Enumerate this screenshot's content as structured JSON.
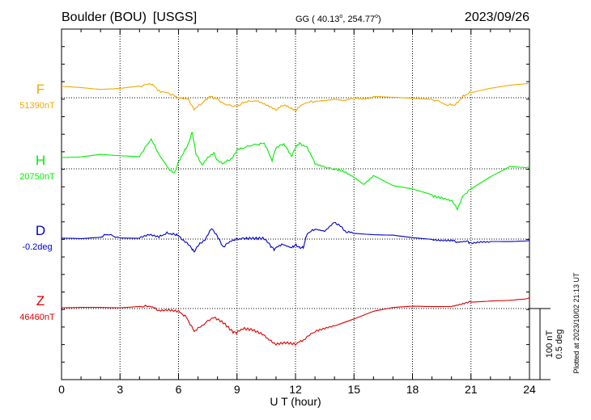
{
  "header": {
    "station": "Boulder (BOU)",
    "agency": "[USGS]",
    "coords_prefix": "GG ( 40.13",
    "coords_mid": ", 254.77",
    "coords_suffix": ")",
    "degree_mark": "o",
    "date": "2023/09/26"
  },
  "footer": {
    "plotted": "Plotted at 2023/10/02 21:13 UT"
  },
  "scale_bar": {
    "label_1": "100 nT",
    "label_2": "0.5 deg"
  },
  "colors": {
    "F": "#f0aa00",
    "H": "#00ee00",
    "D": "#0000cc",
    "Z": "#dd0000",
    "axis": "#000000"
  },
  "chart_data": {
    "type": "line",
    "title": "Boulder (BOU)  [USGS]",
    "xlabel": "U T (hour)",
    "xlim": [
      0,
      24
    ],
    "xticks": [
      "0",
      "3",
      "6",
      "9",
      "12",
      "15",
      "18",
      "21",
      "24"
    ],
    "grid": true,
    "series": [
      {
        "name": "F",
        "baseline_label": "51390nT",
        "baseline": 51390,
        "unit": "nT",
        "x": [
          0,
          1,
          2,
          3,
          4,
          4.6,
          5,
          5.6,
          6,
          6.5,
          6.8,
          7.2,
          7.6,
          8,
          8.4,
          9,
          9.4,
          10,
          10.5,
          11,
          11.4,
          11.8,
          12,
          12.4,
          13,
          13.5,
          14,
          14.5,
          15,
          15.5,
          16,
          17,
          18,
          19,
          19.8,
          20.2,
          20.6,
          21,
          22,
          23,
          24
        ],
        "values": [
          51407,
          51405,
          51402,
          51403,
          51406,
          51410,
          51400,
          51395,
          51390,
          51388,
          51374,
          51382,
          51392,
          51388,
          51380,
          51378,
          51384,
          51386,
          51380,
          51373,
          51380,
          51375,
          51372,
          51382,
          51385,
          51386,
          51388,
          51386,
          51390,
          51388,
          51391,
          51390,
          51389,
          51388,
          51380,
          51380,
          51392,
          51398,
          51404,
          51408,
          51410
        ]
      },
      {
        "name": "H",
        "baseline_label": "20750nT",
        "baseline": 20750,
        "unit": "nT",
        "x": [
          0,
          1,
          2,
          3,
          4,
          4.6,
          5,
          5.5,
          5.8,
          6,
          6.3,
          6.5,
          6.7,
          6.9,
          7.2,
          7.5,
          7.8,
          8,
          8.3,
          8.7,
          9,
          9.3,
          10,
          10.4,
          10.8,
          11,
          11.4,
          11.8,
          12,
          12.2,
          12.6,
          13,
          13.3,
          14,
          14.5,
          15,
          15.5,
          16,
          17,
          18,
          19,
          19.5,
          20,
          20.3,
          20.6,
          21,
          22,
          23,
          24
        ],
        "values": [
          20766,
          20768,
          20772,
          20770,
          20768,
          20792,
          20770,
          20750,
          20744,
          20760,
          20775,
          20784,
          20802,
          20770,
          20756,
          20765,
          20773,
          20761,
          20758,
          20764,
          20776,
          20780,
          20784,
          20786,
          20762,
          20780,
          20785,
          20768,
          20780,
          20786,
          20780,
          20758,
          20753,
          20750,
          20746,
          20738,
          20728,
          20740,
          20725,
          20720,
          20712,
          20709,
          20705,
          20694,
          20712,
          20722,
          20740,
          20755,
          20753
        ]
      },
      {
        "name": "D",
        "baseline_label": "-0.2deg",
        "baseline": -0.2,
        "unit": "deg",
        "x": [
          0,
          1,
          2,
          2.3,
          3,
          4,
          4.5,
          5,
          5.4,
          5.8,
          6,
          6.3,
          6.6,
          6.8,
          7.1,
          7.4,
          7.7,
          8,
          8.3,
          8.7,
          9,
          9.4,
          9.9,
          10.4,
          10.7,
          10.9,
          11.3,
          11.8,
          12,
          12.2,
          12.4,
          12.6,
          13,
          13.5,
          14,
          14.3,
          14.6,
          15,
          16,
          17,
          18,
          19,
          19.5,
          20,
          20.3,
          20.8,
          21,
          21.5,
          22,
          23,
          24
        ],
        "values": [
          -0.198,
          -0.2,
          -0.188,
          -0.168,
          -0.19,
          -0.19,
          -0.168,
          -0.185,
          -0.158,
          -0.168,
          -0.175,
          -0.215,
          -0.25,
          -0.29,
          -0.23,
          -0.2,
          -0.12,
          -0.185,
          -0.255,
          -0.21,
          -0.2,
          -0.195,
          -0.195,
          -0.195,
          -0.245,
          -0.272,
          -0.235,
          -0.262,
          -0.24,
          -0.26,
          -0.26,
          -0.16,
          -0.13,
          -0.145,
          -0.08,
          -0.11,
          -0.15,
          -0.155,
          -0.165,
          -0.17,
          -0.19,
          -0.205,
          -0.21,
          -0.21,
          -0.222,
          -0.215,
          -0.23,
          -0.22,
          -0.22,
          -0.218,
          -0.21
        ]
      },
      {
        "name": "Z",
        "baseline_label": "46460nT",
        "baseline": 46460,
        "unit": "nT",
        "x": [
          0,
          1,
          2,
          3,
          4,
          4.6,
          5,
          5.5,
          6,
          6.4,
          6.8,
          7.2,
          7.8,
          8.3,
          8.8,
          9,
          9.3,
          9.8,
          10.3,
          10.7,
          11,
          11.5,
          12,
          12.4,
          13,
          13.5,
          14,
          15,
          16,
          17,
          18,
          19,
          20,
          20.5,
          21,
          22,
          23,
          24
        ],
        "values": [
          46462,
          46463,
          46463,
          46462,
          46463,
          46463,
          46457,
          46458,
          46456,
          46448,
          46428,
          46436,
          46448,
          46440,
          46427,
          46426,
          46432,
          46430,
          46424,
          46415,
          46410,
          46412,
          46410,
          46416,
          46428,
          46432,
          46436,
          46445,
          46455,
          46460,
          46462,
          46462,
          46463,
          46466,
          46470,
          46472,
          46473,
          46475
        ]
      }
    ]
  }
}
